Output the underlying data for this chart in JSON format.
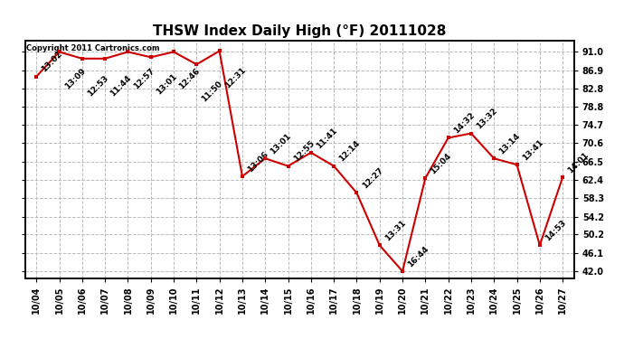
{
  "title": "THSW Index Daily High (°F) 20111028",
  "copyright": "Copyright 2011 Cartronics.com",
  "dates": [
    "10/04",
    "10/05",
    "10/06",
    "10/07",
    "10/08",
    "10/09",
    "10/10",
    "10/11",
    "10/12",
    "10/13",
    "10/14",
    "10/15",
    "10/16",
    "10/17",
    "10/18",
    "10/19",
    "10/20",
    "10/21",
    "10/22",
    "10/23",
    "10/24",
    "10/25",
    "10/26",
    "10/27"
  ],
  "values": [
    85.5,
    91.0,
    89.5,
    89.5,
    91.0,
    89.8,
    91.0,
    88.2,
    91.2,
    63.2,
    67.2,
    65.5,
    68.5,
    65.5,
    59.5,
    47.8,
    42.0,
    62.8,
    71.8,
    72.8,
    67.2,
    65.8,
    47.8,
    63.0
  ],
  "time_labels": [
    "13:02",
    "13:09",
    "12:53",
    "11:44",
    "12:57",
    "13:01",
    "12:46",
    "11:50",
    "12:31",
    "13:06",
    "13:01",
    "12:55",
    "11:41",
    "12:14",
    "12:27",
    "13:31",
    "16:44",
    "15:04",
    "14:32",
    "13:32",
    "13:14",
    "13:41",
    "14:53",
    "14:01"
  ],
  "line_color": "#cc0000",
  "marker_color": "#cc0000",
  "bg_color": "#ffffff",
  "grid_color": "#bbbbbb",
  "yticks_right": [
    42.0,
    46.1,
    50.2,
    54.2,
    58.3,
    62.4,
    66.5,
    70.6,
    74.7,
    78.8,
    82.8,
    86.9,
    91.0
  ],
  "ylim": [
    40.5,
    93.5
  ],
  "title_fontsize": 11,
  "label_fontsize": 6.5,
  "copyright_fontsize": 6,
  "xtick_fontsize": 7,
  "ytick_fontsize": 7
}
